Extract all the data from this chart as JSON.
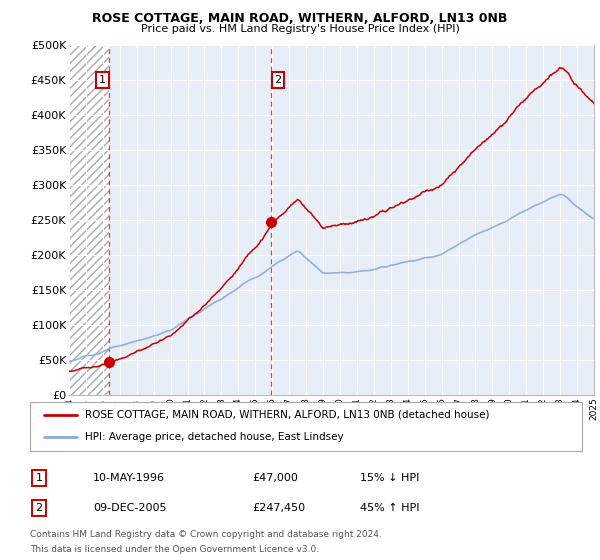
{
  "title": "ROSE COTTAGE, MAIN ROAD, WITHERN, ALFORD, LN13 0NB",
  "subtitle": "Price paid vs. HM Land Registry's House Price Index (HPI)",
  "legend_line1": "ROSE COTTAGE, MAIN ROAD, WITHERN, ALFORD, LN13 0NB (detached house)",
  "legend_line2": "HPI: Average price, detached house, East Lindsey",
  "table_row1": [
    "1",
    "10-MAY-1996",
    "£47,000",
    "15% ↓ HPI"
  ],
  "table_row2": [
    "2",
    "09-DEC-2005",
    "£247,450",
    "45% ↑ HPI"
  ],
  "footnote1": "Contains HM Land Registry data © Crown copyright and database right 2024.",
  "footnote2": "This data is licensed under the Open Government Licence v3.0.",
  "marker1_date": 1996.37,
  "marker1_price": 47000,
  "marker2_date": 2005.94,
  "marker2_price": 247450,
  "xmin": 1994,
  "xmax": 2025,
  "ymin": 0,
  "ymax": 500000,
  "hatch_end": 1996.37,
  "vline1_x": 1996.37,
  "vline2_x": 2005.94,
  "red_line_color": "#cc0000",
  "blue_line_color": "#88aadd",
  "background_color": "#ffffff",
  "plot_bg_color": "#e8eef8"
}
